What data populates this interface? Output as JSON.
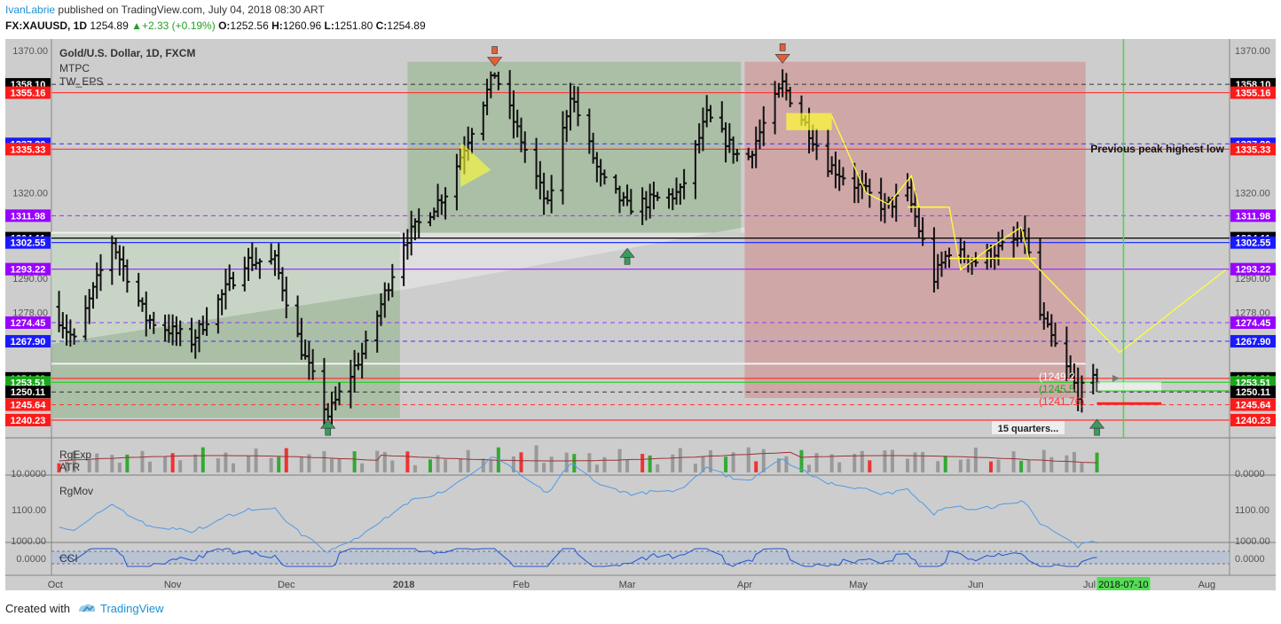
{
  "header": {
    "author": "IvanLabrie",
    "published_text": "published on TradingView.com, July 04, 2018 08:30 ART",
    "symbol": "FX:XAUUSD, 1D",
    "last": "1254.89",
    "change_arrow": "▲",
    "change": "+2.33 (+0.19%)",
    "o_label": "O:",
    "o_value": "1252.56",
    "h_label": "H:",
    "h_value": "1260.96",
    "l_label": "L:",
    "l_value": "1251.80",
    "c_label": "C:",
    "c_value": "1254.89"
  },
  "main_pane": {
    "title": "Gold/U.S. Dollar, 1D, FXCM",
    "indicators": [
      "MTPC",
      "TW_EPS"
    ],
    "annotation": "Previous peak highest low",
    "note": "15 quarters...",
    "projection_labels": [
      "(1249.2",
      "(1245.5",
      "(1241.76)"
    ]
  },
  "volume_pane": {
    "labels": [
      "RgExp",
      "ATR"
    ],
    "left_value": "10.0000",
    "right_value": "0.0000"
  },
  "rgmov_pane": {
    "label": "RgMov",
    "ticks": [
      "1100.00",
      "1000.00"
    ]
  },
  "cci_pane": {
    "label": "CCI",
    "value": "0.0000"
  },
  "footer": {
    "created_with": "Created with",
    "brand": "TradingView"
  },
  "colors": {
    "background": "#cdcdcd",
    "up_shade": "#9fb898",
    "down_shade": "#cf9a9a",
    "gold_line": "#ffff33",
    "green_vline": "#3fdc3f"
  },
  "chart_data": {
    "type": "ohlc",
    "title": "Gold/U.S. Dollar, 1D, FXCM",
    "ylim": [
      1234,
      1374
    ],
    "x_range": [
      "2017-09-30",
      "2018-08-07"
    ],
    "x_ticks": [
      {
        "date": "2017-10-01",
        "label": "Oct",
        "bold": false
      },
      {
        "date": "2017-11-01",
        "label": "Nov",
        "bold": false
      },
      {
        "date": "2017-12-01",
        "label": "Dec",
        "bold": false
      },
      {
        "date": "2018-01-01",
        "label": "2018",
        "bold": true
      },
      {
        "date": "2018-02-01",
        "label": "Feb",
        "bold": false
      },
      {
        "date": "2018-03-01",
        "label": "Mar",
        "bold": false
      },
      {
        "date": "2018-04-01",
        "label": "Apr",
        "bold": false
      },
      {
        "date": "2018-05-01",
        "label": "May",
        "bold": false
      },
      {
        "date": "2018-06-01",
        "label": "Jun",
        "bold": false
      },
      {
        "date": "2018-07-01",
        "label": "Jul",
        "bold": false
      },
      {
        "date": "2018-08-01",
        "label": "Aug",
        "bold": false
      }
    ],
    "x_highlight": {
      "date": "2018-07-10",
      "label": "2018-07-10"
    },
    "y_ticks": [
      1370,
      1320,
      1290,
      1278
    ],
    "y_tick_labels": [
      "1370.00",
      "1320.00",
      "1290.00",
      "1278.00"
    ],
    "price_levels": [
      {
        "value": 1358.1,
        "label": "1358.10",
        "bg": "#000000",
        "style": "dash",
        "line": "#333333"
      },
      {
        "value": 1355.16,
        "label": "1355.16",
        "bg": "#ff1a1a",
        "style": "solid",
        "line": "#ff3333"
      },
      {
        "value": 1337.2,
        "label": "1337.20",
        "bg": "#1a1aff",
        "style": "dash",
        "line": "#3333ff"
      },
      {
        "value": 1335.33,
        "label": "1335.33",
        "bg": "#ff1a1a",
        "style": "solid",
        "line": "#ff3333"
      },
      {
        "value": 1311.98,
        "label": "1311.98",
        "bg": "#9900ff",
        "style": "dash",
        "line": "#9933ff"
      },
      {
        "value": 1304.11,
        "label": "1304.11",
        "bg": "#000000",
        "style": "solid",
        "line": "#000000"
      },
      {
        "value": 1302.55,
        "label": "1302.55",
        "bg": "#1a1aff",
        "style": "solid",
        "line": "#2233ff"
      },
      {
        "value": 1293.22,
        "label": "1293.22",
        "bg": "#9900ff",
        "style": "solid",
        "line": "#9933ff"
      },
      {
        "value": 1274.45,
        "label": "1274.45",
        "bg": "#9900ff",
        "style": "dash",
        "line": "#9933ff"
      },
      {
        "value": 1267.9,
        "label": "1267.90",
        "bg": "#1a1aff",
        "style": "dash",
        "line": "#3333ff"
      },
      {
        "value": 1254.89,
        "label": "1254.89",
        "bg": "#000000",
        "style": "solid",
        "line": "#ff3333"
      },
      {
        "value": 1253.51,
        "label": "1253.51",
        "bg": "#1aa81a",
        "style": "solid",
        "line": "#22cc22"
      },
      {
        "value": 1250.11,
        "label": "1250.11",
        "bg": "#000000",
        "style": "dash",
        "line": "#333333"
      },
      {
        "value": 1245.64,
        "label": "1245.64",
        "bg": "#ff1a1a",
        "style": "dash",
        "line": "#ff3333"
      },
      {
        "value": 1240.23,
        "label": "1240.23",
        "bg": "#ff1a1a",
        "style": "solid",
        "line": "#ff3333"
      }
    ],
    "anchors": [
      [
        "2017-09-30",
        1280
      ],
      [
        "2017-10-06",
        1268
      ],
      [
        "2017-10-16",
        1303
      ],
      [
        "2017-10-25",
        1276
      ],
      [
        "2017-11-06",
        1268
      ],
      [
        "2017-11-20",
        1296
      ],
      [
        "2017-11-28",
        1296
      ],
      [
        "2017-12-05",
        1265
      ],
      [
        "2017-12-12",
        1242
      ],
      [
        "2017-12-22",
        1266
      ],
      [
        "2018-01-01",
        1303
      ],
      [
        "2018-01-12",
        1320
      ],
      [
        "2018-01-25",
        1362
      ],
      [
        "2018-02-08",
        1315
      ],
      [
        "2018-02-14",
        1355
      ],
      [
        "2018-02-22",
        1325
      ],
      [
        "2018-03-01",
        1315
      ],
      [
        "2018-03-15",
        1320
      ],
      [
        "2018-03-22",
        1347
      ],
      [
        "2018-04-01",
        1330
      ],
      [
        "2018-04-11",
        1358
      ],
      [
        "2018-04-23",
        1330
      ],
      [
        "2018-05-08",
        1315
      ],
      [
        "2018-05-14",
        1320
      ],
      [
        "2018-05-21",
        1290
      ],
      [
        "2018-05-25",
        1300
      ],
      [
        "2018-06-01",
        1296
      ],
      [
        "2018-06-14",
        1305
      ],
      [
        "2018-06-18",
        1277
      ],
      [
        "2018-06-28",
        1250
      ],
      [
        "2018-07-03",
        1254.89
      ]
    ]
  }
}
